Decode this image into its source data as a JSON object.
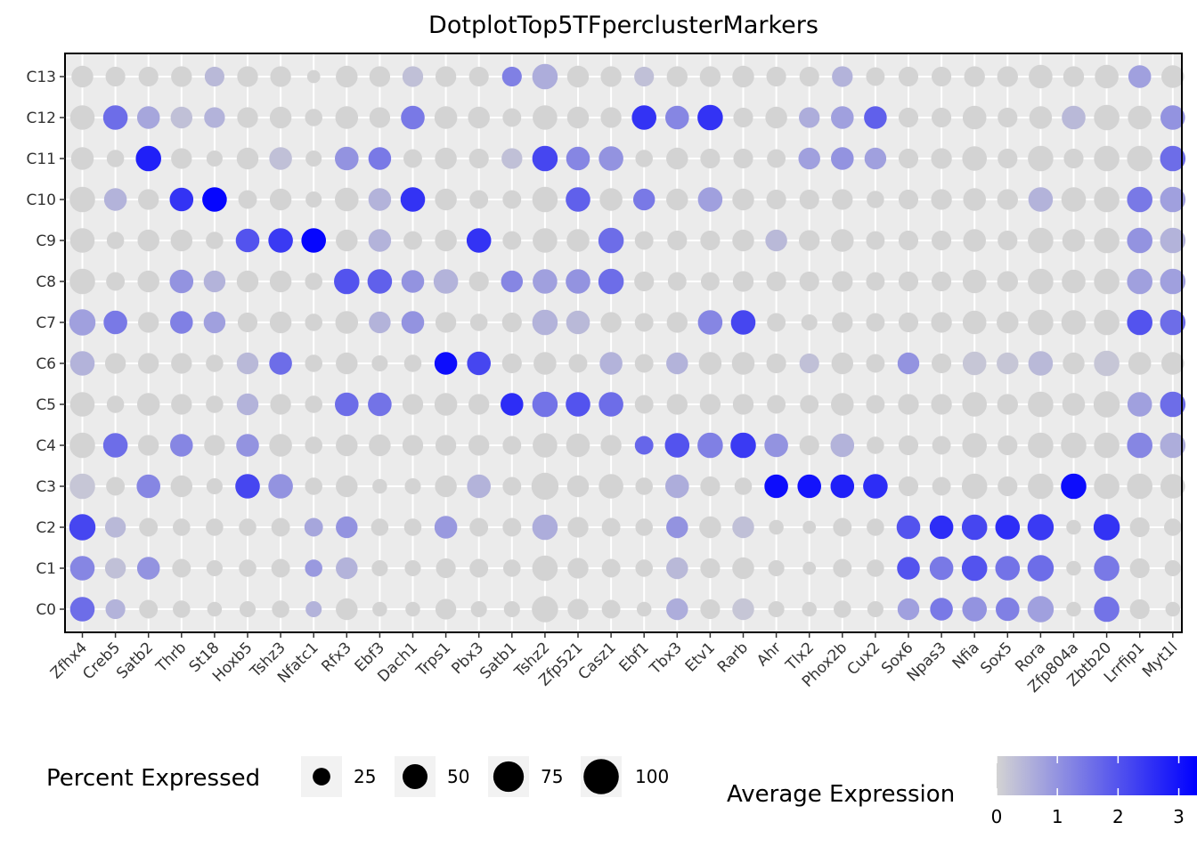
{
  "chart_data": {
    "type": "dotplot",
    "title": "DotplotTop5TFperclusterMarkers",
    "genes": [
      "Zfhx4",
      "Creb5",
      "Satb2",
      "Thrb",
      "St18",
      "Hoxb5",
      "Tshz3",
      "Nfatc1",
      "Rfx3",
      "Ebf3",
      "Dach1",
      "Trps1",
      "Pbx3",
      "Satb1",
      "Tshz2",
      "Zfp521",
      "Casz1",
      "Ebf1",
      "Tbx3",
      "Etv1",
      "Rarb",
      "Ahr",
      "Tlx2",
      "Phox2b",
      "Cux2",
      "Sox6",
      "Npas3",
      "Nfia",
      "Sox5",
      "Rora",
      "Zfp804a",
      "Zbtb20",
      "Lrrfip1",
      "Myt1l"
    ],
    "clusters": [
      "C0",
      "C1",
      "C2",
      "C3",
      "C4",
      "C5",
      "C6",
      "C7",
      "C8",
      "C9",
      "C10",
      "C11",
      "C12",
      "C13"
    ],
    "percent_expressed": [
      [
        70,
        45,
        40,
        35,
        25,
        30,
        35,
        30,
        55,
        25,
        25,
        50,
        30,
        30,
        80,
        50,
        40,
        25,
        55,
        45,
        55,
        30,
        25,
        35,
        30,
        55,
        60,
        70,
        65,
        80,
        25,
        75,
        45,
        25
      ],
      [
        70,
        50,
        60,
        40,
        30,
        35,
        40,
        35,
        55,
        30,
        30,
        45,
        40,
        35,
        75,
        50,
        40,
        35,
        55,
        45,
        55,
        30,
        20,
        40,
        35,
        60,
        65,
        75,
        70,
        80,
        25,
        75,
        45,
        30
      ],
      [
        80,
        50,
        40,
        35,
        35,
        35,
        40,
        40,
        55,
        35,
        35,
        60,
        40,
        40,
        75,
        50,
        40,
        35,
        55,
        55,
        55,
        25,
        20,
        40,
        35,
        65,
        65,
        75,
        70,
        80,
        25,
        80,
        45,
        35
      ],
      [
        75,
        40,
        65,
        55,
        30,
        70,
        70,
        35,
        55,
        25,
        30,
        55,
        65,
        40,
        85,
        55,
        70,
        35,
        65,
        45,
        35,
        65,
        65,
        65,
        70,
        45,
        40,
        75,
        45,
        75,
        75,
        75,
        75,
        70
      ],
      [
        75,
        70,
        50,
        60,
        50,
        60,
        60,
        35,
        55,
        55,
        50,
        50,
        50,
        40,
        70,
        65,
        50,
        40,
        70,
        75,
        75,
        65,
        45,
        65,
        35,
        45,
        40,
        70,
        45,
        75,
        75,
        75,
        75,
        75
      ],
      [
        70,
        35,
        60,
        50,
        35,
        55,
        50,
        35,
        65,
        65,
        50,
        60,
        50,
        60,
        75,
        70,
        70,
        40,
        50,
        50,
        50,
        40,
        40,
        60,
        40,
        50,
        50,
        70,
        50,
        75,
        60,
        80,
        70,
        75
      ],
      [
        70,
        50,
        50,
        50,
        35,
        55,
        60,
        35,
        55,
        30,
        35,
        60,
        65,
        45,
        60,
        40,
        60,
        40,
        55,
        60,
        60,
        45,
        45,
        55,
        40,
        55,
        45,
        65,
        55,
        70,
        55,
        75,
        60,
        60
      ],
      [
        80,
        65,
        50,
        60,
        55,
        45,
        55,
        35,
        60,
        55,
        60,
        50,
        35,
        45,
        75,
        65,
        50,
        40,
        50,
        70,
        70,
        40,
        30,
        50,
        40,
        45,
        50,
        65,
        55,
        75,
        70,
        75,
        75,
        75
      ],
      [
        75,
        40,
        55,
        65,
        55,
        55,
        55,
        35,
        75,
        70,
        60,
        70,
        45,
        55,
        70,
        70,
        75,
        45,
        40,
        40,
        50,
        45,
        45,
        50,
        40,
        45,
        45,
        65,
        50,
        75,
        65,
        75,
        75,
        75
      ],
      [
        70,
        35,
        55,
        55,
        35,
        65,
        70,
        70,
        55,
        60,
        40,
        55,
        70,
        40,
        70,
        60,
        75,
        40,
        45,
        45,
        55,
        55,
        50,
        60,
        40,
        45,
        45,
        60,
        45,
        75,
        60,
        75,
        75,
        75
      ],
      [
        75,
        60,
        50,
        65,
        70,
        40,
        55,
        30,
        65,
        60,
        70,
        55,
        40,
        40,
        75,
        70,
        60,
        55,
        55,
        70,
        55,
        45,
        45,
        50,
        35,
        45,
        50,
        60,
        50,
        70,
        70,
        75,
        75,
        75
      ],
      [
        60,
        35,
        75,
        50,
        30,
        55,
        60,
        30,
        65,
        60,
        40,
        55,
        45,
        50,
        75,
        65,
        70,
        35,
        55,
        45,
        45,
        40,
        55,
        60,
        55,
        45,
        50,
        70,
        45,
        75,
        45,
        75,
        75,
        75
      ],
      [
        70,
        70,
        60,
        55,
        50,
        50,
        55,
        35,
        60,
        50,
        65,
        60,
        55,
        40,
        70,
        55,
        50,
        70,
        65,
        75,
        45,
        55,
        50,
        60,
        60,
        45,
        45,
        65,
        45,
        60,
        65,
        75,
        65,
        70
      ],
      [
        55,
        45,
        45,
        50,
        45,
        50,
        50,
        20,
        55,
        50,
        50,
        50,
        45,
        45,
        75,
        55,
        50,
        45,
        50,
        50,
        55,
        45,
        45,
        50,
        40,
        45,
        45,
        50,
        50,
        65,
        50,
        65,
        60,
        60
      ]
    ],
    "avg_expression": [
      [
        1.6,
        0.5,
        0.0,
        0.0,
        0.0,
        0.0,
        0.0,
        0.5,
        0.0,
        0.0,
        0.0,
        0.0,
        0.0,
        0.0,
        0.0,
        0.0,
        0.0,
        0.0,
        0.6,
        0.0,
        0.2,
        0.0,
        0.0,
        0.0,
        0.0,
        0.8,
        1.4,
        1.0,
        1.3,
        0.8,
        0.0,
        1.5,
        0.0,
        0.0
      ],
      [
        1.2,
        0.3,
        1.0,
        0.0,
        0.0,
        0.0,
        0.0,
        0.9,
        0.5,
        0.0,
        0.0,
        0.0,
        0.0,
        0.0,
        0.0,
        0.0,
        0.0,
        0.0,
        0.4,
        0.0,
        0.0,
        0.0,
        0.0,
        0.0,
        0.0,
        2.0,
        1.4,
        2.0,
        1.5,
        1.6,
        0.0,
        1.4,
        0.0,
        0.0
      ],
      [
        2.2,
        0.4,
        0.0,
        0.0,
        0.0,
        0.0,
        0.0,
        0.7,
        1.0,
        0.0,
        0.0,
        0.9,
        0.0,
        0.0,
        0.6,
        0.0,
        0.0,
        0.0,
        1.0,
        0.0,
        0.3,
        0.0,
        0.0,
        0.0,
        0.0,
        2.0,
        2.6,
        2.2,
        2.6,
        2.4,
        0.0,
        2.5,
        0.0,
        0.0
      ],
      [
        0.2,
        0.0,
        1.2,
        0.0,
        0.0,
        2.2,
        1.0,
        0.0,
        0.0,
        0.0,
        0.0,
        0.0,
        0.5,
        0.0,
        0.0,
        0.0,
        0.0,
        0.0,
        0.6,
        0.0,
        0.0,
        3.1,
        3.0,
        2.8,
        2.6,
        0.0,
        0.0,
        0.0,
        0.0,
        0.0,
        3.1,
        0.0,
        0.0,
        0.0
      ],
      [
        0.0,
        1.6,
        0.0,
        1.2,
        0.0,
        1.0,
        0.0,
        0.0,
        0.0,
        0.0,
        0.0,
        0.0,
        0.0,
        0.0,
        0.0,
        0.0,
        0.0,
        1.7,
        2.0,
        1.3,
        2.4,
        1.0,
        0.0,
        0.5,
        0.0,
        0.0,
        0.0,
        0.0,
        0.0,
        0.0,
        0.0,
        0.0,
        1.2,
        0.6
      ],
      [
        0.0,
        0.0,
        0.0,
        0.0,
        0.0,
        0.5,
        0.0,
        0.0,
        1.6,
        1.5,
        0.0,
        0.0,
        0.0,
        2.6,
        1.5,
        2.0,
        1.6,
        0.0,
        0.0,
        0.0,
        0.0,
        0.0,
        0.0,
        0.0,
        0.0,
        0.0,
        0.0,
        0.0,
        0.0,
        0.0,
        0.0,
        0.0,
        0.8,
        1.6
      ],
      [
        0.5,
        0.0,
        0.0,
        0.0,
        0.0,
        0.4,
        1.6,
        0.0,
        0.0,
        0.0,
        0.0,
        3.1,
        2.2,
        0.0,
        0.0,
        0.0,
        0.5,
        0.0,
        0.5,
        0.0,
        0.0,
        0.0,
        0.3,
        0.0,
        0.0,
        1.0,
        0.0,
        0.2,
        0.2,
        0.4,
        0.0,
        0.2,
        0.0,
        0.0
      ],
      [
        0.8,
        1.4,
        0.0,
        1.3,
        0.8,
        0.0,
        0.0,
        0.0,
        0.0,
        0.5,
        1.0,
        0.0,
        0.0,
        0.0,
        0.5,
        0.4,
        0.0,
        0.0,
        0.0,
        1.2,
        2.2,
        0.0,
        0.0,
        0.0,
        0.0,
        0.0,
        0.0,
        0.0,
        0.0,
        0.0,
        0.0,
        0.0,
        2.0,
        1.6
      ],
      [
        0.0,
        0.0,
        0.0,
        1.0,
        0.5,
        0.0,
        0.0,
        0.0,
        2.0,
        1.8,
        1.0,
        0.5,
        0.0,
        1.2,
        0.8,
        1.0,
        1.6,
        0.0,
        0.0,
        0.0,
        0.0,
        0.0,
        0.0,
        0.0,
        0.0,
        0.0,
        0.0,
        0.0,
        0.0,
        0.0,
        0.0,
        0.0,
        0.8,
        0.8
      ],
      [
        0.0,
        0.0,
        0.0,
        0.0,
        0.0,
        2.0,
        2.4,
        3.2,
        0.0,
        0.5,
        0.0,
        0.0,
        2.5,
        0.0,
        0.0,
        0.0,
        1.6,
        0.0,
        0.0,
        0.0,
        0.0,
        0.4,
        0.0,
        0.0,
        0.0,
        0.0,
        0.0,
        0.0,
        0.0,
        0.0,
        0.0,
        0.0,
        1.0,
        0.5
      ],
      [
        0.0,
        0.5,
        0.0,
        2.5,
        3.2,
        0.0,
        0.0,
        0.0,
        0.0,
        0.5,
        2.5,
        0.0,
        0.0,
        0.0,
        0.0,
        1.8,
        0.0,
        1.4,
        0.0,
        0.8,
        0.0,
        0.0,
        0.0,
        0.0,
        0.0,
        0.0,
        0.0,
        0.0,
        0.0,
        0.5,
        0.0,
        0.0,
        1.4,
        0.8
      ],
      [
        0.0,
        0.0,
        2.8,
        0.0,
        0.0,
        0.0,
        0.3,
        0.0,
        1.0,
        1.4,
        0.0,
        0.0,
        0.0,
        0.3,
        2.2,
        1.2,
        1.0,
        0.0,
        0.0,
        0.0,
        0.0,
        0.0,
        0.8,
        1.0,
        0.8,
        0.0,
        0.0,
        0.0,
        0.0,
        0.0,
        0.0,
        0.0,
        0.0,
        1.6
      ],
      [
        0.0,
        1.6,
        0.7,
        0.3,
        0.5,
        0.0,
        0.0,
        0.0,
        0.0,
        0.0,
        1.4,
        0.0,
        0.0,
        0.0,
        0.0,
        0.0,
        0.0,
        2.5,
        1.2,
        2.5,
        0.0,
        0.0,
        0.6,
        0.8,
        1.8,
        0.0,
        0.0,
        0.0,
        0.0,
        0.0,
        0.4,
        0.0,
        0.0,
        1.0
      ],
      [
        0.0,
        0.0,
        0.0,
        0.0,
        0.4,
        0.0,
        0.0,
        0.0,
        0.0,
        0.0,
        0.3,
        0.0,
        0.0,
        1.3,
        0.6,
        0.0,
        0.0,
        0.3,
        0.0,
        0.0,
        0.0,
        0.0,
        0.0,
        0.5,
        0.0,
        0.0,
        0.0,
        0.0,
        0.0,
        0.0,
        0.0,
        0.0,
        0.8,
        0.0
      ]
    ],
    "size_legend": {
      "title": "Percent Expressed",
      "values": [
        25,
        50,
        75,
        100
      ],
      "labels": [
        "25",
        "50",
        "75",
        "100"
      ]
    },
    "color_legend": {
      "title": "Average Expression",
      "min": 0,
      "max": 3.3,
      "low_color": "#d3d3d3",
      "high_color": "#0000ff",
      "ticks": [
        0,
        1,
        2,
        3
      ],
      "tick_labels": [
        "0",
        "1",
        "2",
        "3"
      ]
    },
    "panel_background": "#ebebeb",
    "grid": true
  }
}
